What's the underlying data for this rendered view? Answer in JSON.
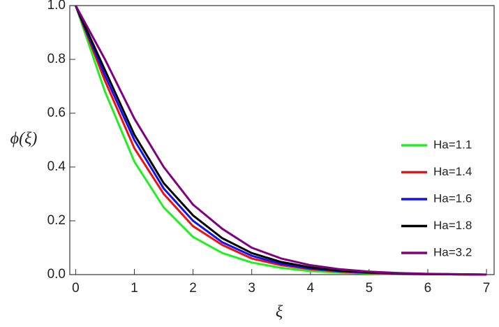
{
  "chart_data": {
    "type": "line",
    "x_label": "ξ",
    "y_label": "ϕ(ξ)",
    "x": [
      0,
      0.5,
      1,
      1.5,
      2,
      2.5,
      3,
      3.5,
      4,
      4.5,
      5,
      5.5,
      6,
      6.5,
      7
    ],
    "series": [
      {
        "name": "Ha=1.1",
        "color": "#22ee22",
        "values": [
          1,
          0.68,
          0.42,
          0.25,
          0.14,
          0.08,
          0.045,
          0.025,
          0.013,
          0.007,
          0.004,
          0.002,
          0.001,
          0.0005,
          0
        ]
      },
      {
        "name": "Ha=1.4",
        "color": "#ee1111",
        "values": [
          1,
          0.72,
          0.47,
          0.3,
          0.18,
          0.11,
          0.06,
          0.035,
          0.02,
          0.011,
          0.006,
          0.003,
          0.002,
          0.001,
          0
        ]
      },
      {
        "name": "Ha=1.6",
        "color": "#1111ee",
        "values": [
          1,
          0.74,
          0.5,
          0.32,
          0.2,
          0.12,
          0.07,
          0.04,
          0.023,
          0.013,
          0.007,
          0.004,
          0.002,
          0.001,
          0
        ]
      },
      {
        "name": "Ha=1.8",
        "color": "#000000",
        "values": [
          1,
          0.76,
          0.52,
          0.34,
          0.22,
          0.135,
          0.08,
          0.047,
          0.027,
          0.015,
          0.008,
          0.004,
          0.002,
          0.001,
          0
        ]
      },
      {
        "name": "Ha=3.2",
        "color": "#800080",
        "values": [
          1,
          0.8,
          0.58,
          0.4,
          0.26,
          0.17,
          0.1,
          0.06,
          0.035,
          0.02,
          0.011,
          0.006,
          0.003,
          0.0015,
          0
        ]
      }
    ],
    "xlim": [
      -0.1,
      7.13
    ],
    "ylim": [
      0,
      1
    ],
    "xticks": [
      0,
      1,
      2,
      3,
      4,
      5,
      6,
      7
    ],
    "yticks": [
      {
        "value": 0,
        "label": "0.0"
      },
      {
        "value": 0.2,
        "label": "0.2"
      },
      {
        "value": 0.4,
        "label": "0.4"
      },
      {
        "value": 0.6,
        "label": "0.6"
      },
      {
        "value": 0.8,
        "label": "0.8"
      },
      {
        "value": 1,
        "label": "1.0"
      }
    ],
    "legend": "right"
  }
}
